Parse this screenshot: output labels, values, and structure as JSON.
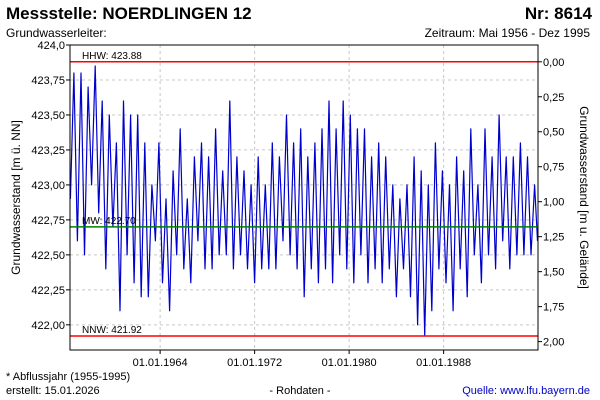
{
  "header": {
    "title": "Messstelle: NOERDLINGEN 12",
    "number": "Nr: 8614",
    "aquifer_label": "Grundwasserleiter:",
    "period": "Zeitraum: Mai 1956 - Dez 1995"
  },
  "footer": {
    "footnote": "* Abflussjahr (1955-1995)",
    "created": "erstellt:  15.01.2026",
    "raw": "- Rohdaten -",
    "source": "Quelle:  www.lfu.bayern.de"
  },
  "colors": {
    "series": "#0000cc",
    "reference_lines": "#ff0000",
    "mean_line": "#008000",
    "grid": "#c8c8c8"
  },
  "chart_data": {
    "type": "line",
    "ylabel_left": "Grundwasserstand [m ü. NN]",
    "ylabel_right": "Grundwasserstand [m u. Gelände]",
    "xlim": [
      1956.37,
      1995.99
    ],
    "ylim": [
      421.82,
      424.0
    ],
    "right_axis_offset": 423.88,
    "grid": true,
    "x_ticks": [
      {
        "value": 1964.0,
        "label": "01.01.1964"
      },
      {
        "value": 1972.0,
        "label": "01.01.1972"
      },
      {
        "value": 1980.0,
        "label": "01.01.1980"
      },
      {
        "value": 1988.0,
        "label": "01.01.1988"
      }
    ],
    "y_ticks_left": [
      {
        "value": 422.0,
        "label": "422,00"
      },
      {
        "value": 422.25,
        "label": "422,25"
      },
      {
        "value": 422.5,
        "label": "422,50"
      },
      {
        "value": 422.75,
        "label": "422,75"
      },
      {
        "value": 423.0,
        "label": "423,00"
      },
      {
        "value": 423.25,
        "label": "423,25"
      },
      {
        "value": 423.5,
        "label": "423,50"
      },
      {
        "value": 423.75,
        "label": "423,75"
      },
      {
        "value": 424.0,
        "label": "424,0"
      }
    ],
    "y_ticks_right": [
      {
        "value": 0.0,
        "label": "0,00"
      },
      {
        "value": 0.25,
        "label": "0,25"
      },
      {
        "value": 0.5,
        "label": "0,50"
      },
      {
        "value": 0.75,
        "label": "0,75"
      },
      {
        "value": 1.0,
        "label": "1,00"
      },
      {
        "value": 1.25,
        "label": "1,25"
      },
      {
        "value": 1.5,
        "label": "1,50"
      },
      {
        "value": 1.75,
        "label": "1,75"
      },
      {
        "value": 2.0,
        "label": "2,00"
      }
    ],
    "reference_lines": [
      {
        "label": "HHW: 423.88",
        "value": 423.88,
        "color": "#ff0000"
      },
      {
        "label": "MW: 422.70",
        "value": 422.7,
        "color": "#008000"
      },
      {
        "label": "NNW: 421.92",
        "value": 421.92,
        "color": "#ff0000"
      }
    ],
    "series": [
      {
        "x": [
          1956.4,
          1956.7,
          1957.0,
          1957.3,
          1957.6,
          1957.9,
          1958.2,
          1958.5,
          1958.8,
          1959.1,
          1959.4,
          1959.7,
          1960.0,
          1960.3,
          1960.6,
          1960.9,
          1961.2,
          1961.5,
          1961.8,
          1962.1,
          1962.4,
          1962.7,
          1963.0,
          1963.3,
          1963.6,
          1963.9,
          1964.2,
          1964.5,
          1964.8,
          1965.1,
          1965.4,
          1965.7,
          1966.0,
          1966.3,
          1966.6,
          1966.9,
          1967.2,
          1967.5,
          1967.8,
          1968.1,
          1968.4,
          1968.7,
          1969.0,
          1969.3,
          1969.6,
          1969.9,
          1970.2,
          1970.5,
          1970.8,
          1971.1,
          1971.4,
          1971.7,
          1972.0,
          1972.3,
          1972.6,
          1972.9,
          1973.2,
          1973.5,
          1973.8,
          1974.1,
          1974.4,
          1974.7,
          1975.0,
          1975.3,
          1975.6,
          1975.9,
          1976.2,
          1976.5,
          1976.8,
          1977.1,
          1977.4,
          1977.7,
          1978.0,
          1978.3,
          1978.6,
          1978.9,
          1979.2,
          1979.5,
          1979.8,
          1980.1,
          1980.4,
          1980.7,
          1981.0,
          1981.3,
          1981.6,
          1981.9,
          1982.2,
          1982.5,
          1982.8,
          1983.1,
          1983.4,
          1983.7,
          1984.0,
          1984.3,
          1984.6,
          1984.9,
          1985.2,
          1985.5,
          1985.8,
          1986.1,
          1986.4,
          1986.7,
          1987.0,
          1987.3,
          1987.6,
          1987.9,
          1988.2,
          1988.5,
          1988.8,
          1989.1,
          1989.4,
          1989.7,
          1990.0,
          1990.3,
          1990.6,
          1990.9,
          1991.2,
          1991.5,
          1991.8,
          1992.1,
          1992.4,
          1992.7,
          1993.0,
          1993.3,
          1993.6,
          1993.9,
          1994.2,
          1994.5,
          1994.8,
          1995.1,
          1995.4,
          1995.7,
          1995.95
        ],
        "values": [
          422.9,
          423.8,
          422.6,
          423.8,
          422.5,
          423.7,
          423.0,
          423.85,
          422.8,
          423.6,
          422.4,
          423.5,
          422.7,
          423.3,
          422.1,
          423.6,
          422.5,
          423.5,
          422.3,
          423.5,
          422.2,
          423.3,
          422.2,
          423.0,
          422.6,
          423.3,
          422.3,
          422.9,
          422.1,
          423.1,
          422.5,
          423.4,
          422.4,
          422.9,
          422.3,
          423.2,
          422.6,
          423.3,
          422.4,
          423.2,
          422.4,
          423.4,
          422.5,
          423.1,
          422.5,
          423.6,
          422.4,
          423.2,
          422.5,
          423.1,
          422.4,
          423.0,
          422.3,
          423.2,
          422.4,
          423.0,
          422.4,
          423.3,
          422.4,
          423.2,
          422.6,
          423.5,
          422.5,
          423.3,
          422.4,
          423.4,
          422.2,
          423.2,
          422.4,
          423.3,
          422.3,
          423.4,
          422.4,
          423.6,
          422.3,
          423.4,
          422.5,
          423.6,
          422.4,
          423.5,
          422.3,
          423.4,
          422.5,
          423.4,
          422.3,
          423.2,
          422.4,
          423.3,
          422.3,
          423.2,
          422.4,
          423.0,
          422.2,
          422.9,
          422.4,
          423.0,
          422.2,
          423.2,
          422.0,
          423.1,
          421.92,
          423.0,
          422.1,
          423.3,
          422.4,
          423.1,
          422.3,
          423.0,
          422.1,
          423.2,
          422.4,
          423.1,
          422.2,
          423.4,
          422.5,
          423.0,
          422.3,
          423.4,
          422.5,
          423.2,
          422.4,
          423.5,
          422.6,
          423.2,
          422.4,
          423.2,
          422.5,
          423.3,
          422.5,
          423.2,
          422.5,
          423.0,
          422.6
        ]
      }
    ]
  }
}
